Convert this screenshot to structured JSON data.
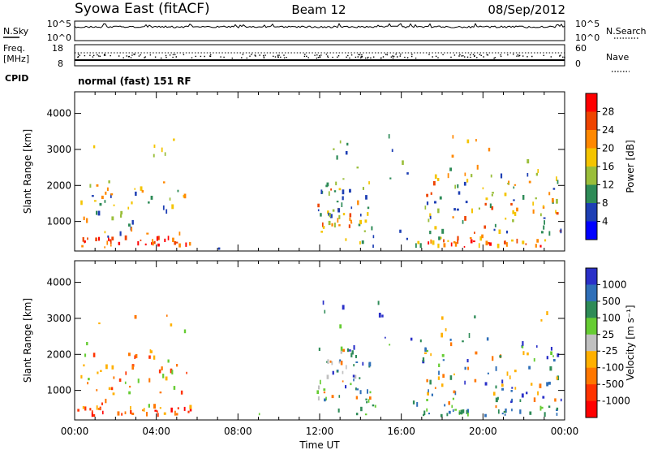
{
  "header": {
    "station": "Syowa East (fitACF)",
    "beam": "Beam 12",
    "date": "08/Sep/2012"
  },
  "top_panel": {
    "nsky_label": "N.Sky",
    "nsearch_label": "N.Search",
    "left_top_tick": "10^5",
    "left_bottom_tick": "10^0",
    "right_top_tick": "10^5",
    "right_bottom_tick": "10^0",
    "freq_label": "Freq.",
    "freq_unit": "[MHz]",
    "freq_top_tick": "18",
    "freq_bottom_tick": "8",
    "nave_label": "Nave",
    "nave_top_tick": "60",
    "nave_bottom_tick": "0",
    "cpid_label": "CPID",
    "cpid_text": "normal (fast) 151 RF"
  },
  "power_colorbar": {
    "title": "Power [dB]",
    "ticks": [
      "28",
      "24",
      "20",
      "16",
      "12",
      "8",
      "4"
    ],
    "colors": [
      "#ff0000",
      "#ee4400",
      "#ff8800",
      "#f4c400",
      "#9abe3a",
      "#2e8b57",
      "#1e3fb4",
      "#0000ff"
    ]
  },
  "velocity_colorbar": {
    "title": "Velocity [m s⁻¹]",
    "ticks": [
      "1000",
      "500",
      "100",
      "25",
      "-25",
      "-100",
      "-500",
      "-1000"
    ],
    "colors": [
      "#2a30c8",
      "#2f6fb8",
      "#2e8b57",
      "#66cc33",
      "#c0c0c0",
      "#ffb000",
      "#ff7700",
      "#ff3300",
      "#ff0000"
    ]
  },
  "chart_data": [
    {
      "type": "heatmap",
      "quantity": "Power",
      "ylabel": "Slant Range [km]",
      "xlabel": "Time UT",
      "x_ticks": [
        "00:00",
        "04:00",
        "08:00",
        "12:00",
        "16:00",
        "20:00",
        "00:00"
      ],
      "y_ticks": [
        1000,
        2000,
        3000,
        4000
      ],
      "xlim_hours": [
        0,
        24
      ],
      "ylim_km": [
        180,
        4600
      ],
      "colorbar_label": "Power [dB]",
      "colorbar_ticks": [
        4,
        8,
        12,
        16,
        20,
        24,
        28
      ]
    },
    {
      "type": "heatmap",
      "quantity": "Velocity",
      "ylabel": "Slant Range [km]",
      "xlabel": "Time UT",
      "x_ticks": [
        "00:00",
        "04:00",
        "08:00",
        "12:00",
        "16:00",
        "20:00",
        "00:00"
      ],
      "y_ticks": [
        1000,
        2000,
        3000,
        4000
      ],
      "xlim_hours": [
        0,
        24
      ],
      "ylim_km": [
        180,
        4600
      ],
      "colorbar_label": "Velocity [m s⁻¹]",
      "colorbar_ticks": [
        -1000,
        -500,
        -100,
        -25,
        25,
        100,
        500,
        1000
      ]
    }
  ],
  "x_axis_title": "Time UT"
}
